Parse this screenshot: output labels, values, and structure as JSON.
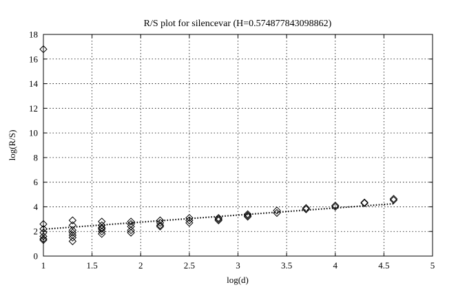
{
  "chart_data": {
    "type": "scatter",
    "title": "R/S plot for silencevar (H=0.574877843098862)",
    "xlabel": "log(d)",
    "ylabel": "log(R/S)",
    "xlim": [
      1,
      5
    ],
    "ylim": [
      0,
      18
    ],
    "xticks": [
      1,
      1.5,
      2,
      2.5,
      3,
      3.5,
      4,
      4.5,
      5
    ],
    "xtick_labels": [
      "1",
      "1.5",
      "2",
      "2.5",
      "3",
      "3.5",
      "4",
      "4.5",
      "5"
    ],
    "yticks": [
      0,
      2,
      4,
      6,
      8,
      10,
      12,
      14,
      16,
      18
    ],
    "ytick_labels": [
      "0",
      "2",
      "4",
      "6",
      "8",
      "10",
      "12",
      "14",
      "16",
      "18"
    ],
    "grid": true,
    "marker": "diamond",
    "points": [
      {
        "x": 1.0,
        "y": 16.8
      },
      {
        "x": 1.0,
        "y": 2.6
      },
      {
        "x": 1.0,
        "y": 2.2
      },
      {
        "x": 1.0,
        "y": 1.9
      },
      {
        "x": 1.0,
        "y": 1.6
      },
      {
        "x": 1.0,
        "y": 1.4
      },
      {
        "x": 1.0,
        "y": 1.3
      },
      {
        "x": 1.3,
        "y": 2.9
      },
      {
        "x": 1.3,
        "y": 2.5
      },
      {
        "x": 1.3,
        "y": 2.1
      },
      {
        "x": 1.3,
        "y": 1.9
      },
      {
        "x": 1.3,
        "y": 1.7
      },
      {
        "x": 1.3,
        "y": 1.5
      },
      {
        "x": 1.3,
        "y": 1.2
      },
      {
        "x": 1.6,
        "y": 2.8
      },
      {
        "x": 1.6,
        "y": 2.5
      },
      {
        "x": 1.6,
        "y": 2.3
      },
      {
        "x": 1.6,
        "y": 2.2
      },
      {
        "x": 1.6,
        "y": 2.0
      },
      {
        "x": 1.6,
        "y": 1.8
      },
      {
        "x": 1.9,
        "y": 2.8
      },
      {
        "x": 1.9,
        "y": 2.6
      },
      {
        "x": 1.9,
        "y": 2.4
      },
      {
        "x": 1.9,
        "y": 2.1
      },
      {
        "x": 1.9,
        "y": 1.9
      },
      {
        "x": 2.2,
        "y": 2.9
      },
      {
        "x": 2.2,
        "y": 2.7
      },
      {
        "x": 2.2,
        "y": 2.5
      },
      {
        "x": 2.2,
        "y": 2.4
      },
      {
        "x": 2.5,
        "y": 3.1
      },
      {
        "x": 2.5,
        "y": 2.9
      },
      {
        "x": 2.5,
        "y": 2.7
      },
      {
        "x": 2.8,
        "y": 3.1
      },
      {
        "x": 2.8,
        "y": 3.0
      },
      {
        "x": 2.8,
        "y": 2.9
      },
      {
        "x": 3.1,
        "y": 3.4
      },
      {
        "x": 3.1,
        "y": 3.3
      },
      {
        "x": 3.1,
        "y": 3.2
      },
      {
        "x": 3.4,
        "y": 3.7
      },
      {
        "x": 3.4,
        "y": 3.5
      },
      {
        "x": 3.7,
        "y": 3.9
      },
      {
        "x": 3.7,
        "y": 3.8
      },
      {
        "x": 4.0,
        "y": 4.1
      },
      {
        "x": 4.0,
        "y": 4.0
      },
      {
        "x": 4.3,
        "y": 4.35
      },
      {
        "x": 4.3,
        "y": 4.3
      },
      {
        "x": 4.6,
        "y": 4.65
      },
      {
        "x": 4.6,
        "y": 4.55
      }
    ],
    "fit_line": {
      "x": [
        1.0,
        4.6
      ],
      "y": [
        2.18,
        4.25
      ],
      "style": "dotted"
    }
  }
}
